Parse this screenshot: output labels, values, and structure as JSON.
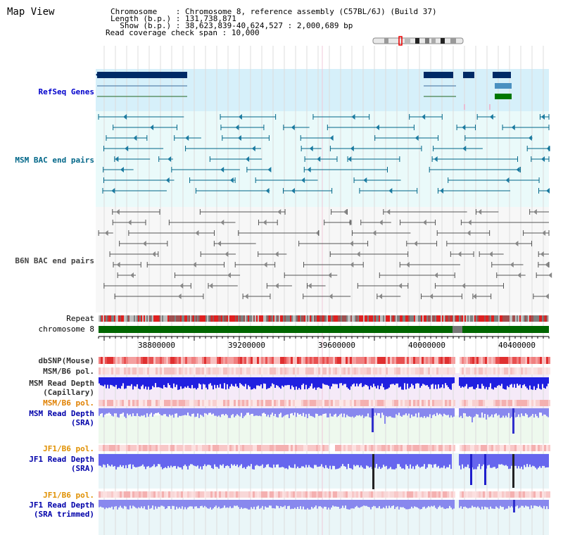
{
  "window": {
    "title": "Map View"
  },
  "header": {
    "rows": [
      {
        "label": "Chromosome   ",
        "value": "Chromosome 8, reference assembly (C57BL/6J) (Build 37)"
      },
      {
        "label": "Length (b.p.)",
        "value": "131,738,871"
      },
      {
        "label": "  Show (b.p.)",
        "value": "38,623,839-40,624,527 : 2,000,689 bp"
      }
    ],
    "coverage": {
      "label": "Read coverage check span",
      "value": "10,000"
    }
  },
  "tracks": {
    "refseq": {
      "label": "RefSeq Genes",
      "color": "#0000cc"
    },
    "msm_bac": {
      "label": "MSM BAC end pairs",
      "color": "#006688"
    },
    "b6n_bac": {
      "label": "B6N BAC end pairs",
      "color": "#444444"
    },
    "repeat": {
      "label": "Repeat"
    },
    "chromosome": {
      "label": "chromosome 8",
      "color": "#006600"
    },
    "dbsnp": {
      "label": "dbSNP(Mouse)"
    },
    "msm_pol1": {
      "label": "MSM/B6 pol."
    },
    "msm_depth_cap": {
      "line1": "MSM Read Depth",
      "line2": "(Capillary)"
    },
    "msm_pol2": {
      "label": "MSM/B6 pol.",
      "color": "#e08000"
    },
    "msm_depth_sra": {
      "line1": "MSM Read Depth",
      "line2": "(SRA)",
      "color": "#0000aa"
    },
    "jf1_pol1": {
      "label": "JF1/B6 pol.",
      "color": "#e09000"
    },
    "jf1_depth_sra": {
      "line1": "JF1 Read Depth",
      "line2": "(SRA)",
      "color": "#0000aa"
    },
    "jf1_pol2": {
      "label": "JF1/B6 pol.",
      "color": "#e09000"
    },
    "jf1_depth_trim": {
      "line1": "JF1 Read Depth",
      "line2": "(SRA trimmed)",
      "color": "#0000aa"
    }
  },
  "axis": {
    "ticks": [
      "38800000",
      "39200000",
      "39600000",
      "40000000",
      "40400000"
    ]
  }
}
